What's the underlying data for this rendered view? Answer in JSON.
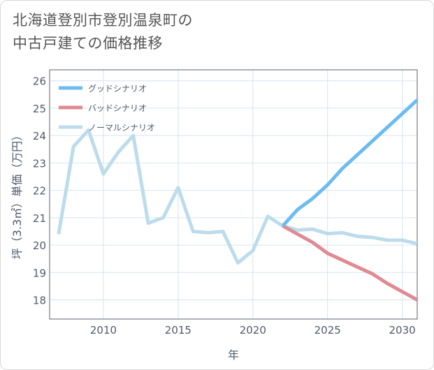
{
  "title_line1": "北海道登別市登別温泉町の",
  "title_line2": "中古戸建ての価格推移",
  "chart_data": {
    "type": "line",
    "xlabel": "年",
    "ylabel": "坪（3.3㎡）単価（万円）",
    "xlim": [
      2006.4,
      2031
    ],
    "ylim": [
      17.3,
      26.4
    ],
    "x_ticks": [
      2010,
      2015,
      2020,
      2025,
      2030
    ],
    "y_ticks": [
      18,
      19,
      20,
      21,
      22,
      23,
      24,
      25,
      26
    ],
    "grid": true,
    "legend_position": "top-left",
    "series": [
      {
        "name": "グッドシナリオ",
        "color": "#6cbcf0",
        "x": [
          2022,
          2023,
          2024,
          2025,
          2026,
          2027,
          2028,
          2029,
          2030,
          2031
        ],
        "values": [
          20.7,
          21.3,
          21.7,
          22.2,
          22.8,
          23.3,
          23.8,
          24.3,
          24.8,
          25.3
        ]
      },
      {
        "name": "バッドシナリオ",
        "color": "#e08a93",
        "x": [
          2022,
          2023,
          2024,
          2025,
          2026,
          2027,
          2028,
          2029,
          2030,
          2031
        ],
        "values": [
          20.7,
          20.4,
          20.1,
          19.7,
          19.45,
          19.2,
          18.95,
          18.6,
          18.3,
          18.0
        ]
      },
      {
        "name": "ノーマルシナリオ",
        "color": "#bcdcec",
        "x": [
          2007,
          2008,
          2009,
          2010,
          2011,
          2012,
          2013,
          2014,
          2015,
          2016,
          2017,
          2018,
          2019,
          2020,
          2021,
          2022,
          2023,
          2024,
          2025,
          2026,
          2027,
          2028,
          2029,
          2030,
          2031
        ],
        "values": [
          20.4,
          23.6,
          24.2,
          22.6,
          23.4,
          24.0,
          20.8,
          21.0,
          22.1,
          20.5,
          20.45,
          20.5,
          19.35,
          19.8,
          21.05,
          20.7,
          20.55,
          20.58,
          20.42,
          20.45,
          20.32,
          20.28,
          20.18,
          20.18,
          20.05
        ]
      }
    ]
  }
}
